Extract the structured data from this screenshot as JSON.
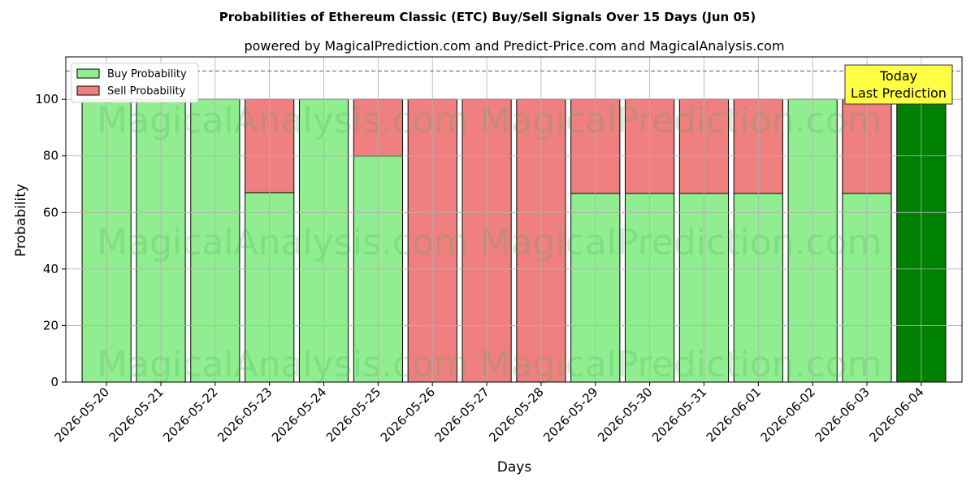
{
  "chart_data": {
    "type": "bar",
    "stacked": true,
    "title": "Probabilities of Ethereum Classic (ETC) Buy/Sell Signals Over 15 Days (Jun 05)",
    "subtitle": "powered by MagicalPrediction.com and Predict-Price.com and MagicalAnalysis.com",
    "xlabel": "Days",
    "ylabel": "Probability",
    "ylim": [
      0,
      115
    ],
    "yticks": [
      0,
      20,
      40,
      60,
      80,
      100
    ],
    "grid": true,
    "legend_position": "top-left",
    "reference_line": 110,
    "categories": [
      "2026-05-20",
      "2026-05-21",
      "2026-05-22",
      "2026-05-23",
      "2026-05-24",
      "2026-05-25",
      "2026-05-26",
      "2026-05-27",
      "2026-05-28",
      "2026-05-29",
      "2026-05-30",
      "2026-05-31",
      "2026-06-01",
      "2026-06-02",
      "2026-06-03",
      "2026-06-04"
    ],
    "series": [
      {
        "name": "Buy Probability",
        "color": "#90ee90",
        "values": [
          100,
          100,
          100,
          67,
          100,
          80,
          0,
          0,
          0,
          66.7,
          66.7,
          66.7,
          66.7,
          100,
          66.7,
          100
        ]
      },
      {
        "name": "Sell Probability",
        "color": "#f08080",
        "values": [
          0,
          0,
          0,
          33,
          0,
          20,
          100,
          100,
          100,
          33.3,
          33.3,
          33.3,
          33.3,
          0,
          33.3,
          0
        ]
      }
    ],
    "highlight": {
      "index": 15,
      "color": "#008000"
    },
    "annotation": {
      "line1": "Today",
      "line2": "Last Prediction",
      "background": "#ffff44"
    },
    "watermarks": [
      "MagicalAnalysis.com",
      "MagicalPrediction.com"
    ]
  }
}
